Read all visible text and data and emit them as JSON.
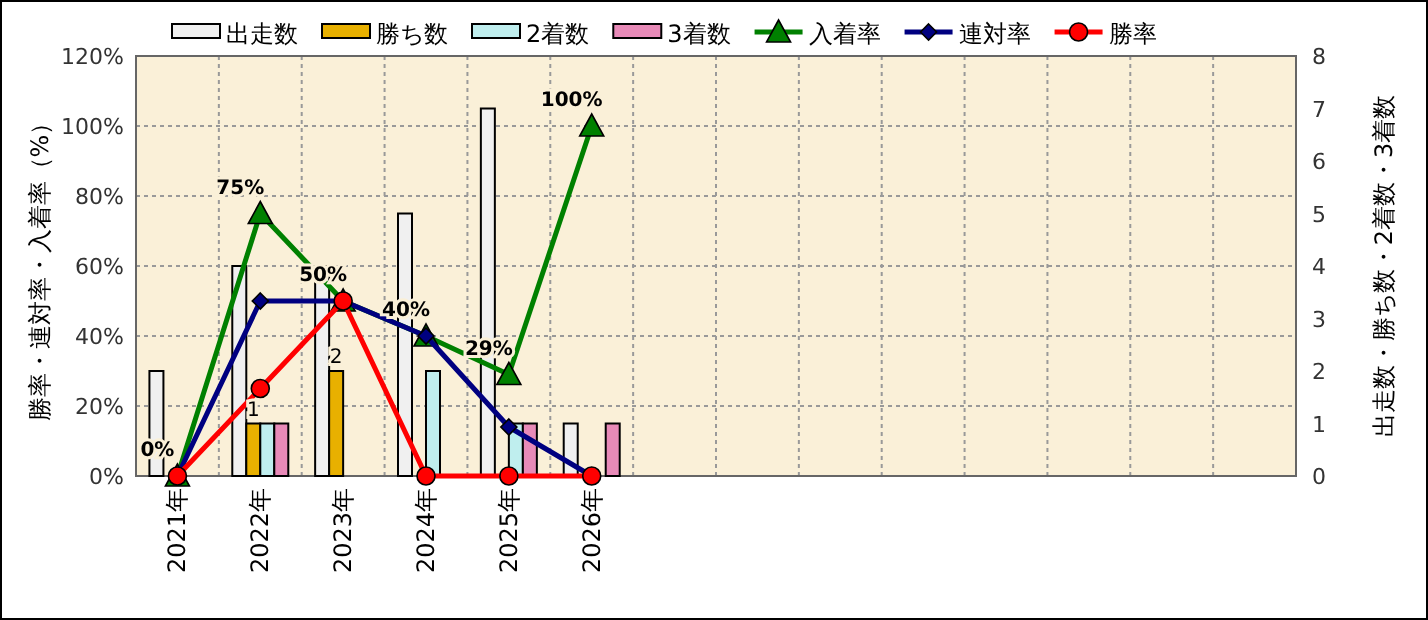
{
  "chart_data": {
    "type": "bar",
    "ylabel": "勝率・連対率・入着率（%）",
    "y2label": "出走数・勝ち数・2着数・3着数",
    "categories": [
      "2021年",
      "2022年",
      "2023年",
      "2024年",
      "2025年",
      "2026年",
      null,
      null,
      null,
      null,
      null,
      null,
      null,
      null
    ],
    "ylim": [
      0,
      120
    ],
    "yticks": [
      {
        "value": 0,
        "label": "0%"
      },
      {
        "value": 20,
        "label": "20%"
      },
      {
        "value": 40,
        "label": "40%"
      },
      {
        "value": 60,
        "label": "60%"
      },
      {
        "value": 80,
        "label": "80%"
      },
      {
        "value": 100,
        "label": "100%"
      },
      {
        "value": 120,
        "label": "120%"
      }
    ],
    "y2lim": [
      0,
      8
    ],
    "y2ticks": [
      0,
      1,
      2,
      3,
      4,
      5,
      6,
      7,
      8
    ],
    "grid": true,
    "legend": "top",
    "series": [
      {
        "name": "出走数",
        "axis": "y2",
        "color": "#f0f0f0",
        "values": [
          2,
          4,
          4,
          5,
          7,
          1,
          null,
          null,
          null,
          null,
          null,
          null,
          null,
          null
        ]
      },
      {
        "name": "勝ち数",
        "axis": "y2",
        "color": "#e8b000",
        "values": [
          0,
          1,
          2,
          0,
          0,
          0,
          null,
          null,
          null,
          null,
          null,
          null,
          null,
          null
        ],
        "value_labels": [
          null,
          "1",
          "2",
          null,
          null,
          null,
          null,
          null,
          null,
          null,
          null,
          null,
          null,
          null
        ]
      },
      {
        "name": "2着数",
        "axis": "y2",
        "color": "#bfeeee",
        "values": [
          0,
          1,
          0,
          2,
          1,
          0,
          null,
          null,
          null,
          null,
          null,
          null,
          null,
          null
        ]
      },
      {
        "name": "3着数",
        "axis": "y2",
        "color": "#e88ab8",
        "values": [
          0,
          1,
          0,
          0,
          1,
          1,
          null,
          null,
          null,
          null,
          null,
          null,
          null,
          null
        ]
      },
      {
        "name": "入着率",
        "type": "line",
        "color": "#008000",
        "marker": "triangle",
        "values": [
          0,
          75,
          50,
          40,
          29,
          100,
          null,
          null,
          null,
          null,
          null,
          null,
          null,
          null
        ],
        "value_labels": [
          "0%",
          "75%",
          "50%",
          "40%",
          "29%",
          "100%",
          null,
          null,
          null,
          null,
          null,
          null,
          null,
          null
        ]
      },
      {
        "name": "連対率",
        "type": "line",
        "color": "#000080",
        "marker": "diamond",
        "values": [
          0,
          50,
          50,
          40,
          14,
          0,
          null,
          null,
          null,
          null,
          null,
          null,
          null,
          null
        ]
      },
      {
        "name": "勝率",
        "type": "line",
        "color": "#ff0000",
        "marker": "circle",
        "values": [
          0,
          25,
          50,
          0,
          0,
          0,
          null,
          null,
          null,
          null,
          null,
          null,
          null,
          null
        ]
      }
    ]
  }
}
